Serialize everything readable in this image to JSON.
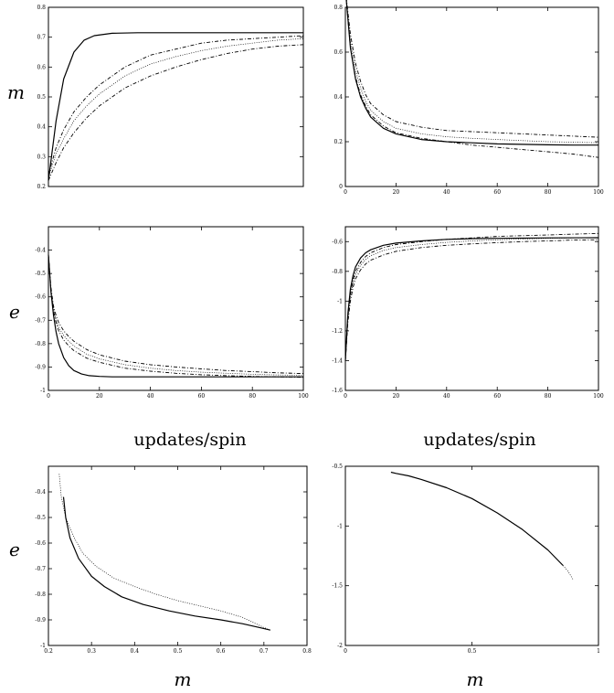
{
  "chart_data": [
    {
      "type": "line",
      "ylabel": "m",
      "xlim": [
        0,
        100
      ],
      "ylim": [
        0.2,
        0.8
      ],
      "yticks": [
        "0.2",
        "0.3",
        "0.4",
        "0.5",
        "0.6",
        "0.7",
        "0.8"
      ],
      "xticks": [],
      "series": [
        {
          "style": "solid",
          "x": [
            0,
            3,
            6,
            10,
            14,
            18,
            25,
            35,
            50,
            70,
            100
          ],
          "y": [
            0.22,
            0.42,
            0.56,
            0.65,
            0.69,
            0.705,
            0.713,
            0.715,
            0.715,
            0.715,
            0.715
          ]
        },
        {
          "style": "dashed",
          "x": [
            0,
            3,
            6,
            10,
            15,
            20,
            30,
            40,
            50,
            60,
            70,
            80,
            90,
            100
          ],
          "y": [
            0.24,
            0.33,
            0.39,
            0.45,
            0.5,
            0.54,
            0.6,
            0.64,
            0.66,
            0.68,
            0.69,
            0.695,
            0.7,
            0.705
          ]
        },
        {
          "style": "dotted",
          "x": [
            0,
            3,
            6,
            10,
            15,
            20,
            30,
            40,
            50,
            60,
            70,
            80,
            90,
            100
          ],
          "y": [
            0.23,
            0.31,
            0.36,
            0.42,
            0.47,
            0.51,
            0.57,
            0.61,
            0.635,
            0.655,
            0.67,
            0.68,
            0.69,
            0.695
          ]
        },
        {
          "style": "dashed",
          "x": [
            0,
            3,
            6,
            10,
            15,
            20,
            30,
            40,
            50,
            60,
            70,
            80,
            90,
            100
          ],
          "y": [
            0.22,
            0.28,
            0.33,
            0.38,
            0.43,
            0.47,
            0.53,
            0.57,
            0.6,
            0.625,
            0.645,
            0.66,
            0.67,
            0.675
          ]
        }
      ]
    },
    {
      "type": "line",
      "ylabel": "",
      "xlim": [
        0,
        100
      ],
      "ylim": [
        0,
        0.8
      ],
      "yticks": [
        "0",
        "0.2",
        "0.4",
        "0.6",
        "0.8"
      ],
      "xticks": [
        "0",
        "20",
        "40",
        "60",
        "80",
        "100"
      ],
      "series": [
        {
          "style": "solid",
          "x": [
            0,
            2,
            4,
            6,
            8,
            10,
            15,
            20,
            30,
            40,
            50,
            60,
            70,
            80,
            90,
            100
          ],
          "y": [
            0.88,
            0.62,
            0.48,
            0.4,
            0.35,
            0.31,
            0.26,
            0.235,
            0.21,
            0.2,
            0.195,
            0.19,
            0.188,
            0.186,
            0.185,
            0.185
          ]
        },
        {
          "style": "dashed",
          "x": [
            0,
            2,
            4,
            6,
            8,
            10,
            15,
            20,
            30,
            40,
            50,
            60,
            70,
            80,
            90,
            100
          ],
          "y": [
            0.88,
            0.68,
            0.55,
            0.47,
            0.41,
            0.37,
            0.32,
            0.29,
            0.265,
            0.25,
            0.245,
            0.24,
            0.235,
            0.23,
            0.225,
            0.22
          ]
        },
        {
          "style": "dotted",
          "x": [
            0,
            2,
            4,
            6,
            8,
            10,
            15,
            20,
            30,
            40,
            50,
            60,
            70,
            80,
            90,
            100
          ],
          "y": [
            0.88,
            0.65,
            0.52,
            0.44,
            0.38,
            0.34,
            0.29,
            0.26,
            0.235,
            0.222,
            0.215,
            0.21,
            0.205,
            0.2,
            0.198,
            0.195
          ]
        },
        {
          "style": "dashed",
          "x": [
            0,
            2,
            4,
            6,
            8,
            10,
            15,
            20,
            30,
            40,
            50,
            60,
            70,
            80,
            90,
            100
          ],
          "y": [
            0.88,
            0.62,
            0.49,
            0.41,
            0.36,
            0.32,
            0.27,
            0.24,
            0.215,
            0.2,
            0.185,
            0.175,
            0.165,
            0.155,
            0.145,
            0.13
          ]
        }
      ]
    },
    {
      "type": "line",
      "ylabel": "e",
      "xlabel": "updates/spin",
      "xlim": [
        0,
        100
      ],
      "ylim": [
        -1,
        -0.3
      ],
      "yticks": [
        "-1",
        "-0.9",
        "-0.8",
        "-0.7",
        "-0.6",
        "-0.5",
        "-0.4"
      ],
      "xticks": [
        "0",
        "20",
        "40",
        "60",
        "80",
        "100"
      ],
      "series": [
        {
          "style": "solid",
          "x": [
            0,
            1,
            2,
            3,
            4,
            6,
            8,
            10,
            13,
            16,
            20,
            25,
            30,
            40,
            60,
            100
          ],
          "y": [
            -0.42,
            -0.58,
            -0.68,
            -0.75,
            -0.8,
            -0.86,
            -0.895,
            -0.915,
            -0.93,
            -0.937,
            -0.94,
            -0.942,
            -0.942,
            -0.942,
            -0.942,
            -0.942
          ]
        },
        {
          "style": "dashed",
          "x": [
            0,
            1,
            2,
            3,
            4,
            6,
            8,
            10,
            15,
            20,
            30,
            40,
            50,
            60,
            70,
            80,
            90,
            100
          ],
          "y": [
            -0.42,
            -0.56,
            -0.64,
            -0.68,
            -0.71,
            -0.745,
            -0.77,
            -0.79,
            -0.825,
            -0.848,
            -0.875,
            -0.89,
            -0.9,
            -0.908,
            -0.915,
            -0.92,
            -0.925,
            -0.928
          ]
        },
        {
          "style": "dotted",
          "x": [
            0,
            1,
            2,
            3,
            4,
            6,
            8,
            10,
            15,
            20,
            30,
            40,
            50,
            60,
            70,
            80,
            90,
            100
          ],
          "y": [
            -0.42,
            -0.57,
            -0.65,
            -0.7,
            -0.73,
            -0.765,
            -0.79,
            -0.81,
            -0.845,
            -0.865,
            -0.89,
            -0.905,
            -0.915,
            -0.922,
            -0.927,
            -0.931,
            -0.934,
            -0.936
          ]
        },
        {
          "style": "dashed",
          "x": [
            0,
            1,
            2,
            3,
            4,
            6,
            8,
            10,
            15,
            20,
            30,
            40,
            50,
            60,
            70,
            80,
            90,
            100
          ],
          "y": [
            -0.42,
            -0.58,
            -0.66,
            -0.71,
            -0.745,
            -0.785,
            -0.81,
            -0.83,
            -0.862,
            -0.88,
            -0.905,
            -0.918,
            -0.927,
            -0.933,
            -0.937,
            -0.94,
            -0.942,
            -0.944
          ]
        }
      ]
    },
    {
      "type": "line",
      "ylabel": "",
      "xlabel": "updates/spin",
      "xlim": [
        0,
        100
      ],
      "ylim": [
        -1.6,
        -0.5
      ],
      "yticks": [
        "-1.6",
        "-1.4",
        "-1.2",
        "-1",
        "-0.8",
        "-0.6"
      ],
      "xticks": [
        "0",
        "20",
        "40",
        "60",
        "80",
        "100"
      ],
      "series": [
        {
          "style": "solid",
          "x": [
            0,
            1,
            2,
            3,
            4,
            6,
            8,
            10,
            15,
            20,
            30,
            40,
            50,
            60,
            80,
            100
          ],
          "y": [
            -1.4,
            -1.08,
            -0.92,
            -0.83,
            -0.77,
            -0.71,
            -0.675,
            -0.655,
            -0.625,
            -0.61,
            -0.595,
            -0.585,
            -0.58,
            -0.578,
            -0.575,
            -0.574
          ]
        },
        {
          "style": "dashed",
          "x": [
            0,
            1,
            2,
            3,
            4,
            6,
            8,
            10,
            15,
            20,
            30,
            40,
            50,
            60,
            70,
            80,
            90,
            100
          ],
          "y": [
            -1.4,
            -1.1,
            -0.95,
            -0.86,
            -0.8,
            -0.74,
            -0.7,
            -0.675,
            -0.64,
            -0.62,
            -0.6,
            -0.585,
            -0.575,
            -0.565,
            -0.56,
            -0.555,
            -0.55,
            -0.545
          ]
        },
        {
          "style": "dotted",
          "x": [
            0,
            1,
            2,
            3,
            4,
            6,
            8,
            10,
            15,
            20,
            30,
            40,
            50,
            60,
            70,
            80,
            90,
            100
          ],
          "y": [
            -1.4,
            -1.12,
            -0.97,
            -0.88,
            -0.82,
            -0.76,
            -0.72,
            -0.695,
            -0.66,
            -0.64,
            -0.62,
            -0.605,
            -0.595,
            -0.588,
            -0.583,
            -0.578,
            -0.575,
            -0.572
          ]
        },
        {
          "style": "dashed",
          "x": [
            0,
            1,
            2,
            3,
            4,
            6,
            8,
            10,
            15,
            20,
            30,
            40,
            50,
            60,
            70,
            80,
            90,
            100
          ],
          "y": [
            -1.4,
            -1.14,
            -1,
            -0.91,
            -0.85,
            -0.79,
            -0.75,
            -0.725,
            -0.69,
            -0.665,
            -0.64,
            -0.625,
            -0.615,
            -0.607,
            -0.6,
            -0.595,
            -0.59,
            -0.587
          ]
        }
      ]
    },
    {
      "type": "line",
      "ylabel": "e",
      "xlabel": "m",
      "xlim": [
        0.2,
        0.8
      ],
      "ylim": [
        -1,
        -0.3
      ],
      "yticks": [
        "-1",
        "-0.9",
        "-0.8",
        "-0.7",
        "-0.6",
        "-0.5",
        "-0.4"
      ],
      "xticks": [
        "0.2",
        "0.3",
        "0.4",
        "0.5",
        "0.6",
        "0.7",
        "0.8"
      ],
      "series": [
        {
          "style": "solid",
          "x": [
            0.235,
            0.24,
            0.25,
            0.27,
            0.3,
            0.33,
            0.37,
            0.42,
            0.48,
            0.54,
            0.6,
            0.65,
            0.69,
            0.715
          ],
          "y": [
            -0.42,
            -0.5,
            -0.58,
            -0.66,
            -0.73,
            -0.77,
            -0.81,
            -0.84,
            -0.865,
            -0.885,
            -0.9,
            -0.915,
            -0.93,
            -0.94
          ]
        },
        {
          "style": "dotted",
          "x": [
            0.225,
            0.23,
            0.24,
            0.26,
            0.28,
            0.31,
            0.35,
            0.4,
            0.45,
            0.5,
            0.55,
            0.6,
            0.65,
            0.7,
            0.715
          ],
          "y": [
            -0.33,
            -0.42,
            -0.5,
            -0.58,
            -0.64,
            -0.69,
            -0.735,
            -0.77,
            -0.8,
            -0.825,
            -0.845,
            -0.865,
            -0.89,
            -0.93,
            -0.94
          ]
        }
      ]
    },
    {
      "type": "line",
      "ylabel": "",
      "xlabel": "m",
      "xlim": [
        0,
        1
      ],
      "ylim": [
        -2,
        -0.5
      ],
      "yticks": [
        "-2",
        "-1.5",
        "-1",
        "-0.5"
      ],
      "xticks": [
        "0",
        "0.5",
        "1"
      ],
      "series": [
        {
          "style": "solid",
          "x": [
            0.18,
            0.2,
            0.25,
            0.3,
            0.4,
            0.5,
            0.6,
            0.7,
            0.8,
            0.86
          ],
          "y": [
            -0.55,
            -0.56,
            -0.58,
            -0.61,
            -0.68,
            -0.77,
            -0.89,
            -1.03,
            -1.2,
            -1.33
          ]
        },
        {
          "style": "dotted",
          "x": [
            0.86,
            0.88,
            0.9
          ],
          "y": [
            -1.33,
            -1.38,
            -1.45
          ]
        }
      ]
    }
  ]
}
